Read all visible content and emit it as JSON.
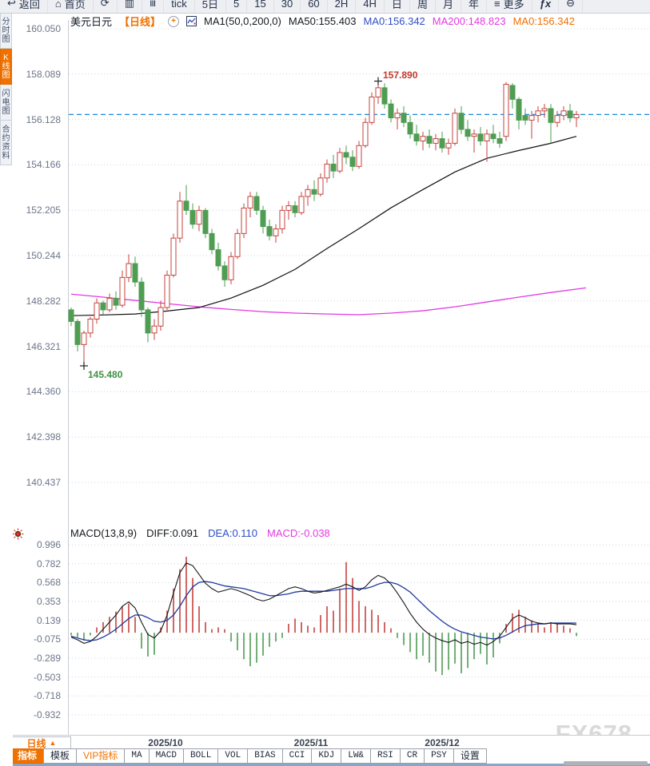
{
  "toolbar": {
    "items": [
      {
        "name": "back-button",
        "icon": "back-arrow-icon",
        "label": "返回"
      },
      {
        "name": "home-button",
        "icon": "home-icon",
        "label": "首页"
      },
      {
        "name": "refresh-button",
        "icon": "refresh-icon",
        "label": ""
      },
      {
        "name": "chart-style-button",
        "icon": "candlestick-chart-icon",
        "label": ""
      },
      {
        "name": "indicator-button",
        "icon": "indicator-columns-icon",
        "label": ""
      },
      {
        "name": "interval-tick-button",
        "label": "tick"
      },
      {
        "name": "interval-5day-button",
        "label": "5日"
      },
      {
        "name": "interval-5-button",
        "label": "5"
      },
      {
        "name": "interval-15-button",
        "label": "15"
      },
      {
        "name": "interval-30-button",
        "label": "30"
      },
      {
        "name": "interval-60-button",
        "label": "60"
      },
      {
        "name": "interval-2h-button",
        "label": "2H"
      },
      {
        "name": "interval-4h-button",
        "label": "4H"
      },
      {
        "name": "interval-day-button",
        "label": "日"
      },
      {
        "name": "interval-week-button",
        "label": "周"
      },
      {
        "name": "interval-month-button",
        "label": "月"
      },
      {
        "name": "interval-year-button",
        "label": "年"
      },
      {
        "name": "more-button",
        "icon": "menu-icon",
        "label": "更多"
      },
      {
        "name": "fx-button",
        "label": "ƒx"
      },
      {
        "name": "zoom-out-button",
        "icon": "zoom-out-icon",
        "label": ""
      }
    ]
  },
  "sidebar": {
    "tabs": [
      {
        "name": "sidebar-tab-time-chart",
        "label": "分时图",
        "selected": false
      },
      {
        "name": "sidebar-tab-kline-chart",
        "label": "K线图",
        "selected": true
      },
      {
        "name": "sidebar-tab-lightning-chart",
        "label": "闪电图",
        "selected": false
      },
      {
        "name": "sidebar-tab-contract-info",
        "label": "合约资料",
        "selected": false
      }
    ]
  },
  "chart_header": {
    "symbol": "美元日元",
    "period_tag": "【日线】",
    "ma_settings": "MA1(50,0,200,0)",
    "ma50": "MA50:155.403",
    "ma0_blue": "MA0:156.342",
    "ma200": "MA200:148.823",
    "ma0_orange": "MA0:156.342"
  },
  "macd_header": {
    "title": "MACD(13,8,9)",
    "diff": "DIFF:0.091",
    "dea": "DEA:0.110",
    "macd": "MACD:-0.038"
  },
  "annotations": {
    "high": "157.890",
    "low": "145.480"
  },
  "x_axis": {
    "period_label": "日线",
    "period_arrow": "▲"
  },
  "bottom_tabs": [
    {
      "name": "tab-indicator",
      "label": "指标",
      "selected": true
    },
    {
      "name": "tab-template",
      "label": "模板"
    },
    {
      "name": "tab-vip-indicator",
      "label": "VIP指标",
      "accent": true
    },
    {
      "name": "tab-ma",
      "label": "MA"
    },
    {
      "name": "tab-macd",
      "label": "MACD"
    },
    {
      "name": "tab-boll",
      "label": "BOLL"
    },
    {
      "name": "tab-vol",
      "label": "VOL"
    },
    {
      "name": "tab-bias",
      "label": "BIAS"
    },
    {
      "name": "tab-cci",
      "label": "CCI"
    },
    {
      "name": "tab-kdj",
      "label": "KDJ"
    },
    {
      "name": "tab-lw",
      "label": "LW&"
    },
    {
      "name": "tab-rsi",
      "label": "RSI"
    },
    {
      "name": "tab-cr",
      "label": "CR"
    },
    {
      "name": "tab-psy",
      "label": "PSY"
    },
    {
      "name": "tab-settings",
      "label": "设置"
    }
  ],
  "watermark": "FX678",
  "colors": {
    "up": "#c5433e",
    "down": "#4e9d52",
    "ma50": "#111111",
    "ma200": "#e23ae2",
    "dea": "#1e3a9e",
    "diff": "#15181d",
    "price_line": "#1d86d2",
    "grid": "#ced4dc",
    "accent": "#f07100"
  },
  "chart_data": [
    {
      "type": "candlestick",
      "title": "美元日元 日线 (USD/JPY Daily)",
      "y_axis_ticks": [
        "160.050",
        "158.089",
        "156.128",
        "154.166",
        "152.205",
        "150.244",
        "148.282",
        "146.321",
        "144.360",
        "142.398",
        "140.437"
      ],
      "ylim": [
        140.437,
        160.05
      ],
      "grid": true,
      "last_price_line": 156.342,
      "high_point": {
        "index": 48,
        "price": 157.89,
        "label": "157.890"
      },
      "low_point": {
        "index": 2,
        "price": 145.48,
        "label": "145.480"
      },
      "x_date_labels": [
        {
          "label": "2025/10",
          "index": 14.75
        },
        {
          "label": "2025/11",
          "index": 37.5
        },
        {
          "label": "2025/12",
          "index": 58
        }
      ],
      "candles_ohlc": [
        [
          147.9,
          148.0,
          147.2,
          147.4
        ],
        [
          147.4,
          147.5,
          146.1,
          146.4
        ],
        [
          146.4,
          147.0,
          145.48,
          146.9
        ],
        [
          146.9,
          147.6,
          146.7,
          147.5
        ],
        [
          147.5,
          148.4,
          147.3,
          148.2
        ],
        [
          148.2,
          148.3,
          147.7,
          147.9
        ],
        [
          147.9,
          148.6,
          147.8,
          148.4
        ],
        [
          148.4,
          148.7,
          147.9,
          148.1
        ],
        [
          148.1,
          149.6,
          148.0,
          149.3
        ],
        [
          149.3,
          150.3,
          149.1,
          149.9
        ],
        [
          149.9,
          150.2,
          148.9,
          149.1
        ],
        [
          149.1,
          149.3,
          147.6,
          147.9
        ],
        [
          147.9,
          148.0,
          146.5,
          146.9
        ],
        [
          146.9,
          147.5,
          146.6,
          147.2
        ],
        [
          147.2,
          148.3,
          147.0,
          148.0
        ],
        [
          148.0,
          149.6,
          147.9,
          149.4
        ],
        [
          149.4,
          151.2,
          149.3,
          151.0
        ],
        [
          151.0,
          153.0,
          150.8,
          152.6
        ],
        [
          152.6,
          153.3,
          152.0,
          152.2
        ],
        [
          152.2,
          152.5,
          151.4,
          151.6
        ],
        [
          151.6,
          152.4,
          151.3,
          152.2
        ],
        [
          152.2,
          152.3,
          151.0,
          151.2
        ],
        [
          151.2,
          151.4,
          150.3,
          150.5
        ],
        [
          150.5,
          150.8,
          149.6,
          149.8
        ],
        [
          149.8,
          150.0,
          148.9,
          149.2
        ],
        [
          149.2,
          150.4,
          149.0,
          150.2
        ],
        [
          150.2,
          151.4,
          150.1,
          151.2
        ],
        [
          151.2,
          152.5,
          151.0,
          152.3
        ],
        [
          152.3,
          153.0,
          151.9,
          152.8
        ],
        [
          152.8,
          153.0,
          152.0,
          152.2
        ],
        [
          152.2,
          152.4,
          151.2,
          151.5
        ],
        [
          151.5,
          151.8,
          150.9,
          151.1
        ],
        [
          151.1,
          151.6,
          150.8,
          151.4
        ],
        [
          151.4,
          152.4,
          151.2,
          152.2
        ],
        [
          152.2,
          152.6,
          151.8,
          152.4
        ],
        [
          152.4,
          152.6,
          151.9,
          152.1
        ],
        [
          152.1,
          153.0,
          152.0,
          152.8
        ],
        [
          152.8,
          153.3,
          152.4,
          153.1
        ],
        [
          153.1,
          153.5,
          152.6,
          152.9
        ],
        [
          152.9,
          153.8,
          152.8,
          153.6
        ],
        [
          153.6,
          154.4,
          153.4,
          154.2
        ],
        [
          154.2,
          154.6,
          153.6,
          153.9
        ],
        [
          153.9,
          154.9,
          153.8,
          154.7
        ],
        [
          154.7,
          155.0,
          154.2,
          154.5
        ],
        [
          154.5,
          154.8,
          153.9,
          154.1
        ],
        [
          154.1,
          155.2,
          154.0,
          155.0
        ],
        [
          155.0,
          156.2,
          154.9,
          156.0
        ],
        [
          156.0,
          157.3,
          155.9,
          157.1
        ],
        [
          157.1,
          157.89,
          156.8,
          157.5
        ],
        [
          157.5,
          157.7,
          156.6,
          156.8
        ],
        [
          156.8,
          157.0,
          156.0,
          156.2
        ],
        [
          156.2,
          156.6,
          155.7,
          156.4
        ],
        [
          156.4,
          156.7,
          155.8,
          156.0
        ],
        [
          156.0,
          156.3,
          155.3,
          155.5
        ],
        [
          155.5,
          155.9,
          155.0,
          155.2
        ],
        [
          155.2,
          155.6,
          154.8,
          155.4
        ],
        [
          155.4,
          155.7,
          154.9,
          155.1
        ],
        [
          155.1,
          155.5,
          154.8,
          155.3
        ],
        [
          155.3,
          155.6,
          154.7,
          154.9
        ],
        [
          154.9,
          155.3,
          154.6,
          155.1
        ],
        [
          155.1,
          156.6,
          155.0,
          156.4
        ],
        [
          156.4,
          156.7,
          155.5,
          155.7
        ],
        [
          155.7,
          156.1,
          155.2,
          155.4
        ],
        [
          155.4,
          155.7,
          154.7,
          155.5
        ],
        [
          155.5,
          155.8,
          155.0,
          155.2
        ],
        [
          155.2,
          155.7,
          154.3,
          155.5
        ],
        [
          155.5,
          155.9,
          155.1,
          155.3
        ],
        [
          155.3,
          155.6,
          154.9,
          155.1
        ],
        [
          155.4,
          157.75,
          155.2,
          157.65
        ],
        [
          157.6,
          157.7,
          156.6,
          157.0
        ],
        [
          157.0,
          157.1,
          155.7,
          156.1
        ],
        [
          156.3,
          156.6,
          155.9,
          156.1
        ],
        [
          156.1,
          156.5,
          155.3,
          156.3
        ],
        [
          156.3,
          156.7,
          156.0,
          156.5
        ],
        [
          156.5,
          156.8,
          156.2,
          156.6
        ],
        [
          156.6,
          156.8,
          155.1,
          156.0
        ],
        [
          156.0,
          156.5,
          155.8,
          156.3
        ],
        [
          156.3,
          156.7,
          156.1,
          156.5
        ],
        [
          156.5,
          156.8,
          156.0,
          156.2
        ],
        [
          156.2,
          156.5,
          155.8,
          156.34
        ]
      ],
      "ma50_anchors": [
        [
          0,
          147.65
        ],
        [
          5,
          147.68
        ],
        [
          10,
          147.72
        ],
        [
          15,
          147.85
        ],
        [
          20,
          148.0
        ],
        [
          25,
          148.41
        ],
        [
          30,
          148.96
        ],
        [
          35,
          149.65
        ],
        [
          40,
          150.55
        ],
        [
          45,
          151.41
        ],
        [
          50,
          152.31
        ],
        [
          55,
          153.1
        ],
        [
          60,
          153.86
        ],
        [
          65,
          154.45
        ],
        [
          70,
          154.79
        ],
        [
          75,
          155.1
        ],
        [
          79,
          155.4
        ]
      ],
      "ma200_anchors": [
        [
          0,
          148.58
        ],
        [
          5,
          148.45
        ],
        [
          10,
          148.31
        ],
        [
          15,
          148.17
        ],
        [
          20,
          148.03
        ],
        [
          25,
          147.92
        ],
        [
          30,
          147.82
        ],
        [
          35,
          147.76
        ],
        [
          40,
          147.72
        ],
        [
          45,
          147.69
        ],
        [
          50,
          147.76
        ],
        [
          55,
          147.86
        ],
        [
          60,
          148.03
        ],
        [
          65,
          148.24
        ],
        [
          70,
          148.45
        ],
        [
          75,
          148.65
        ],
        [
          80.5,
          148.85
        ]
      ]
    },
    {
      "type": "line+bar",
      "title": "MACD(13,8,9)",
      "y_axis_ticks": [
        "0.996",
        "0.782",
        "0.568",
        "0.353",
        "0.139",
        "-0.075",
        "-0.289",
        "-0.503",
        "-0.718",
        "-0.932"
      ],
      "ylim": [
        -0.932,
        0.996
      ],
      "grid": true,
      "series_final_values": {
        "diff": 0.091,
        "dea": 0.11,
        "macd": -0.038
      },
      "diff": [
        -0.05,
        -0.08,
        -0.12,
        -0.1,
        -0.04,
        0.04,
        0.12,
        0.2,
        0.3,
        0.35,
        0.28,
        0.12,
        -0.02,
        -0.06,
        0.02,
        0.2,
        0.45,
        0.68,
        0.79,
        0.76,
        0.66,
        0.56,
        0.5,
        0.46,
        0.48,
        0.5,
        0.48,
        0.45,
        0.42,
        0.38,
        0.36,
        0.38,
        0.42,
        0.46,
        0.5,
        0.52,
        0.5,
        0.47,
        0.45,
        0.46,
        0.48,
        0.5,
        0.52,
        0.55,
        0.52,
        0.48,
        0.52,
        0.6,
        0.65,
        0.62,
        0.55,
        0.45,
        0.34,
        0.22,
        0.12,
        0.04,
        -0.02,
        -0.06,
        -0.09,
        -0.11,
        -0.08,
        -0.12,
        -0.1,
        -0.13,
        -0.11,
        -0.14,
        -0.1,
        -0.04,
        0.06,
        0.16,
        0.2,
        0.17,
        0.13,
        0.11,
        0.1,
        0.11,
        0.1,
        0.1,
        0.1,
        0.091
      ],
      "dea": [
        -0.04,
        -0.06,
        -0.08,
        -0.09,
        -0.08,
        -0.05,
        -0.01,
        0.04,
        0.1,
        0.16,
        0.2,
        0.2,
        0.17,
        0.13,
        0.12,
        0.14,
        0.2,
        0.3,
        0.42,
        0.52,
        0.57,
        0.58,
        0.57,
        0.55,
        0.53,
        0.52,
        0.51,
        0.5,
        0.48,
        0.46,
        0.44,
        0.42,
        0.42,
        0.43,
        0.44,
        0.46,
        0.47,
        0.47,
        0.47,
        0.47,
        0.47,
        0.48,
        0.49,
        0.5,
        0.5,
        0.5,
        0.5,
        0.52,
        0.55,
        0.57,
        0.57,
        0.55,
        0.51,
        0.46,
        0.39,
        0.32,
        0.25,
        0.19,
        0.13,
        0.08,
        0.04,
        0.01,
        -0.01,
        -0.03,
        -0.05,
        -0.06,
        -0.07,
        -0.06,
        -0.03,
        0.01,
        0.05,
        0.08,
        0.09,
        0.1,
        0.1,
        0.11,
        0.11,
        0.11,
        0.11,
        0.11
      ],
      "histogram": [
        -0.03,
        -0.05,
        -0.09,
        -0.03,
        0.06,
        0.12,
        0.18,
        0.24,
        0.3,
        0.33,
        0.18,
        -0.18,
        -0.27,
        -0.25,
        0.06,
        0.25,
        0.5,
        0.72,
        0.86,
        0.62,
        0.3,
        0.12,
        0.04,
        0.06,
        0.04,
        -0.1,
        -0.2,
        -0.3,
        -0.38,
        -0.34,
        -0.26,
        -0.16,
        -0.1,
        -0.06,
        0.1,
        0.16,
        0.12,
        0.08,
        0.06,
        0.2,
        0.3,
        0.25,
        0.5,
        0.8,
        0.62,
        0.36,
        0.3,
        0.26,
        0.2,
        0.12,
        0.05,
        -0.06,
        -0.14,
        -0.22,
        -0.3,
        -0.26,
        -0.34,
        -0.44,
        -0.48,
        -0.42,
        -0.35,
        -0.46,
        -0.4,
        -0.3,
        -0.24,
        -0.36,
        -0.28,
        -0.12,
        0.1,
        0.22,
        0.26,
        0.18,
        0.14,
        0.1,
        0.06,
        0.12,
        0.1,
        0.08,
        0.05,
        -0.038
      ]
    }
  ]
}
